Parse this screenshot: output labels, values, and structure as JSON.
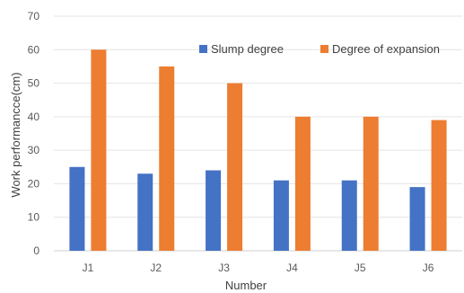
{
  "chart_data": {
    "type": "bar",
    "title": "",
    "xlabel": "Number",
    "ylabel": "Work performancce(cm)",
    "categories": [
      "J1",
      "J2",
      "J3",
      "J4",
      "J5",
      "J6"
    ],
    "series": [
      {
        "name": "Slump degree",
        "color": "#4472C4",
        "values": [
          25,
          23,
          24,
          21,
          21,
          19
        ]
      },
      {
        "name": "Degree of expansion",
        "color": "#ED7D31",
        "values": [
          60,
          55,
          50,
          40,
          40,
          39
        ]
      }
    ],
    "ylim": [
      0,
      70
    ],
    "yticks": [
      "0",
      "10",
      "20",
      "30",
      "40",
      "50",
      "60",
      "70"
    ],
    "grid": true,
    "legend_position": "top-right"
  }
}
